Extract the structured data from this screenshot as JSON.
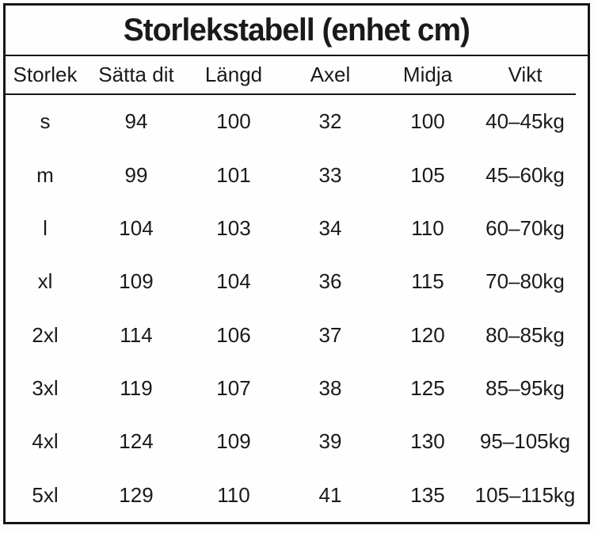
{
  "table": {
    "title": "Storlekstabell (enhet cm)",
    "columns": [
      "Storlek",
      "Sätta dit",
      "Längd",
      "Axel",
      "Midja",
      "Vikt"
    ],
    "rows": [
      [
        "s",
        "94",
        "100",
        "32",
        "100",
        "40–45kg"
      ],
      [
        "m",
        "99",
        "101",
        "33",
        "105",
        "45–60kg"
      ],
      [
        "l",
        "104",
        "103",
        "34",
        "110",
        "60–70kg"
      ],
      [
        "xl",
        "109",
        "104",
        "36",
        "115",
        "70–80kg"
      ],
      [
        "2xl",
        "114",
        "106",
        "37",
        "120",
        "80–85kg"
      ],
      [
        "3xl",
        "119",
        "107",
        "38",
        "125",
        "85–95kg"
      ],
      [
        "4xl",
        "124",
        "109",
        "39",
        "130",
        "95–105kg"
      ],
      [
        "5xl",
        "129",
        "110",
        "41",
        "135",
        "105–115kg"
      ]
    ],
    "colors": {
      "border": "#161616",
      "text": "#1a1a1a",
      "background": "#fefefe"
    }
  }
}
